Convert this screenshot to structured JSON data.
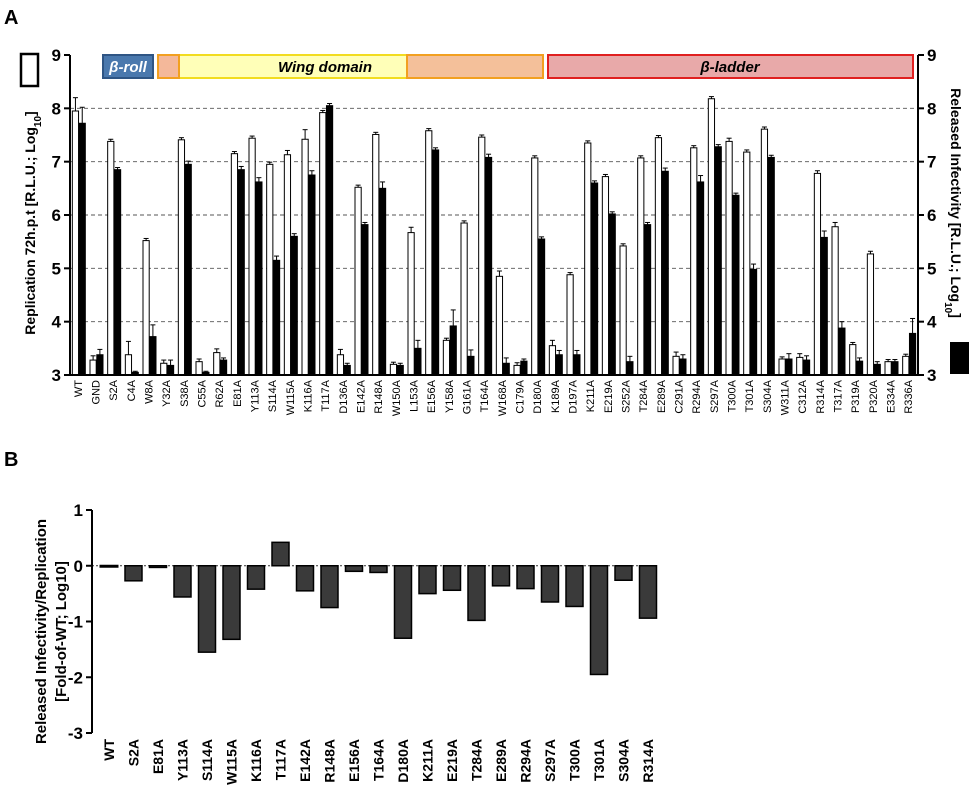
{
  "panels": [
    {
      "label": "A"
    },
    {
      "label": "B"
    }
  ],
  "chart_data": [
    {
      "type": "bar",
      "panel": "A",
      "ylabel": "Replication 72h.p.t [R.L.U.; Log",
      "ylabel_sub": "10",
      "ylabel_tail": "]",
      "y2label": "Released Infectivity [R.L.U.; Log",
      "y2label_sub": "10",
      "y2label_tail": "]",
      "ylim": [
        3,
        9
      ],
      "y_ticks": [
        "3",
        "4",
        "5",
        "6",
        "7",
        "8",
        "9"
      ],
      "grid": "dashed horizontal at 4-8",
      "domains": [
        {
          "name": "β-roll",
          "fill": "#4a78ad",
          "stroke": "#2f5584",
          "text_color": "#ffffff"
        },
        {
          "name": "",
          "fill": "#f4b89a",
          "stroke": "#f2a020",
          "text_color": "#000000"
        },
        {
          "name": "Wing domain",
          "fill": "#ffffb8",
          "stroke": "#f2dc20",
          "text_color": "#000000"
        },
        {
          "name": "",
          "fill": "#f4c09a",
          "stroke": "#f2a020",
          "text_color": "#000000"
        },
        {
          "name": "β-ladder",
          "fill": "#e8a9a9",
          "stroke": "#e02020",
          "text_color": "#000000"
        }
      ],
      "categories": [
        "WT",
        "GND",
        "S2A",
        "C4A",
        "W8A",
        "Y32A",
        "S38A",
        "C55A",
        "R62A",
        "E81A",
        "Y113A",
        "S114A",
        "W115A",
        "K116A",
        "T117A",
        "D136A",
        "E142A",
        "R148A",
        "W150A",
        "L153A",
        "E156A",
        "Y158A",
        "G161A",
        "T164A",
        "W168A",
        "C179A",
        "D180A",
        "K189A",
        "D197A",
        "K211A",
        "E219A",
        "S252A",
        "T284A",
        "E289A",
        "C291A",
        "R294A",
        "S297A",
        "T300A",
        "T301A",
        "S304A",
        "W311A",
        "C312A",
        "R314A",
        "T317A",
        "P319A",
        "P320A",
        "E334A",
        "R336A"
      ],
      "series": [
        {
          "name": "",
          "fill": "#ffffff",
          "values": [
            7.95,
            3.28,
            7.38,
            3.38,
            5.52,
            3.22,
            7.41,
            3.25,
            3.42,
            7.15,
            7.44,
            6.95,
            7.13,
            7.42,
            7.92,
            3.38,
            6.52,
            7.51,
            3.2,
            5.67,
            7.58,
            3.65,
            5.85,
            7.46,
            4.85,
            3.18,
            7.07,
            3.55,
            4.88,
            7.35,
            6.72,
            5.42,
            7.07,
            7.45,
            3.35,
            7.26,
            8.18,
            7.38,
            7.18,
            7.61,
            3.3,
            3.33,
            6.78,
            5.78,
            3.57,
            5.27,
            3.25,
            3.35
          ],
          "errors": [
            0.25,
            0.08,
            0.04,
            0.25,
            0.04,
            0.06,
            0.04,
            0.05,
            0.07,
            0.04,
            0.04,
            0.04,
            0.08,
            0.18,
            0.04,
            0.1,
            0.04,
            0.04,
            0.04,
            0.1,
            0.04,
            0.04,
            0.04,
            0.04,
            0.1,
            0.05,
            0.04,
            0.1,
            0.04,
            0.04,
            0.04,
            0.04,
            0.04,
            0.04,
            0.08,
            0.04,
            0.04,
            0.06,
            0.04,
            0.04,
            0.04,
            0.07,
            0.05,
            0.08,
            0.04,
            0.05,
            0.04,
            0.04
          ]
        },
        {
          "name": "",
          "fill": "#000000",
          "values": [
            7.72,
            3.38,
            6.85,
            3.05,
            3.72,
            3.18,
            6.95,
            3.05,
            3.28,
            6.85,
            6.62,
            5.15,
            5.6,
            6.75,
            8.05,
            3.18,
            5.82,
            6.5,
            3.18,
            3.5,
            7.22,
            3.92,
            3.35,
            7.08,
            3.22,
            3.26,
            5.55,
            3.38,
            3.38,
            6.6,
            6.02,
            3.25,
            5.82,
            6.82,
            3.3,
            6.62,
            7.28,
            6.37,
            4.98,
            7.08,
            3.3,
            3.28,
            5.58,
            3.88,
            3.26,
            3.2,
            3.25,
            3.78
          ],
          "errors": [
            0.3,
            0.1,
            0.04,
            0.02,
            0.22,
            0.1,
            0.06,
            0.02,
            0.04,
            0.06,
            0.08,
            0.08,
            0.05,
            0.08,
            0.04,
            0.04,
            0.04,
            0.12,
            0.04,
            0.15,
            0.04,
            0.3,
            0.12,
            0.06,
            0.1,
            0.04,
            0.04,
            0.08,
            0.08,
            0.04,
            0.04,
            0.1,
            0.04,
            0.06,
            0.08,
            0.12,
            0.04,
            0.04,
            0.1,
            0.04,
            0.1,
            0.08,
            0.12,
            0.12,
            0.06,
            0.05,
            0.04,
            0.28
          ]
        }
      ]
    },
    {
      "type": "bar",
      "panel": "B",
      "ylabel_line1": "Released Infectivity/Replication",
      "ylabel_line2": "[Fold-of-WT; Log10]",
      "ylim": [
        -3,
        1
      ],
      "y_ticks": [
        "-3",
        "-2",
        "-1",
        "0",
        "1"
      ],
      "reference_line": 0,
      "categories": [
        "WT",
        "S2A",
        "E81A",
        "Y113A",
        "S114A",
        "W115A",
        "K116A",
        "T117A",
        "E142A",
        "R148A",
        "E156A",
        "T164A",
        "D180A",
        "K211A",
        "E219A",
        "T284A",
        "E289A",
        "R294A",
        "S297A",
        "T300A",
        "T301A",
        "S304A",
        "R314A"
      ],
      "values": [
        0,
        -0.27,
        -0.03,
        -0.56,
        -1.55,
        -1.32,
        -0.42,
        0.42,
        -0.45,
        -0.75,
        -0.1,
        -0.12,
        -1.3,
        -0.5,
        -0.44,
        -0.98,
        -0.36,
        -0.41,
        -0.65,
        -0.73,
        -1.95,
        -0.26,
        -0.94
      ],
      "colors": {
        "wt": "#ffffff",
        "mutant": "#3a3a3a"
      }
    }
  ]
}
